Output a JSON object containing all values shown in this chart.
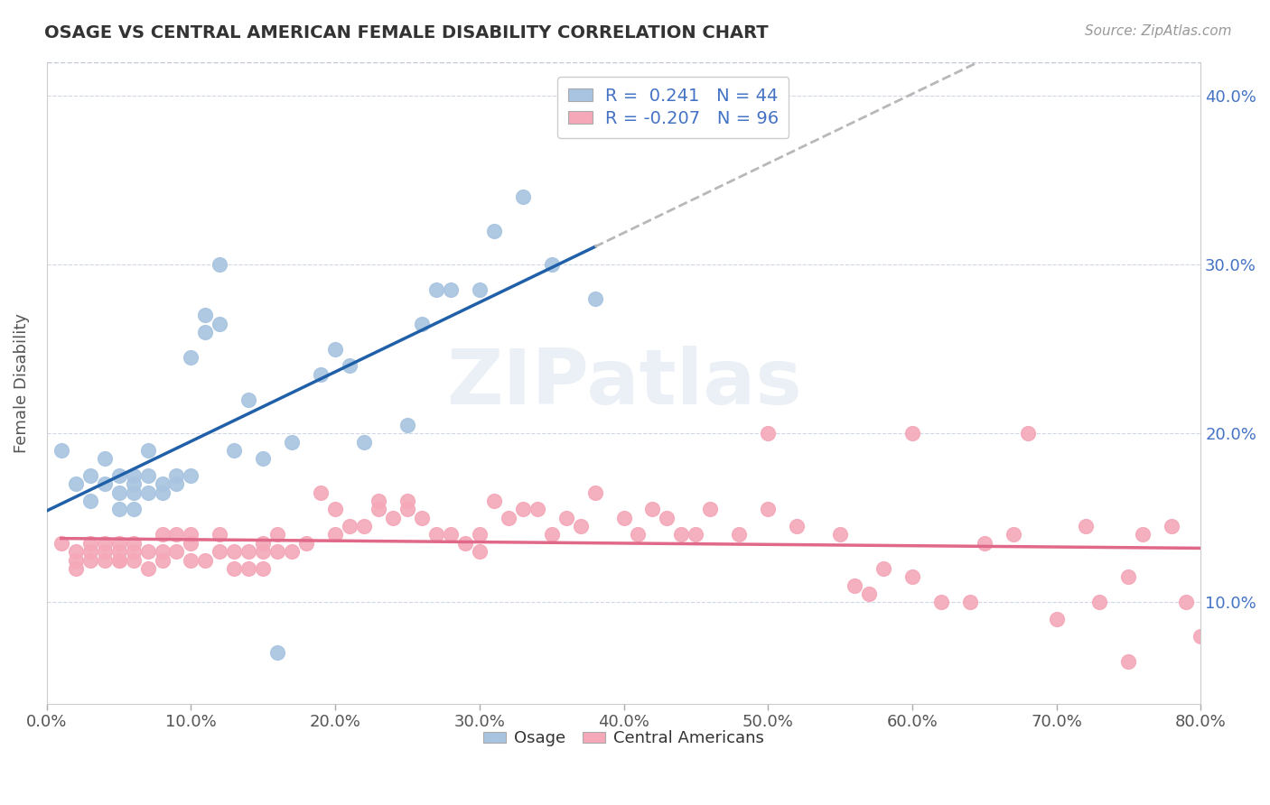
{
  "title": "OSAGE VS CENTRAL AMERICAN FEMALE DISABILITY CORRELATION CHART",
  "source": "Source: ZipAtlas.com",
  "ylabel": "Female Disability",
  "xlim": [
    0.0,
    0.8
  ],
  "ylim": [
    0.04,
    0.42
  ],
  "xtick_labels": [
    "0.0%",
    "10.0%",
    "20.0%",
    "30.0%",
    "40.0%",
    "50.0%",
    "60.0%",
    "70.0%",
    "80.0%"
  ],
  "xtick_values": [
    0.0,
    0.1,
    0.2,
    0.3,
    0.4,
    0.5,
    0.6,
    0.7,
    0.8
  ],
  "ytick_labels": [
    "10.0%",
    "20.0%",
    "30.0%",
    "40.0%"
  ],
  "ytick_values": [
    0.1,
    0.2,
    0.3,
    0.4
  ],
  "osage_color": "#a8c4e0",
  "central_color": "#f4a8b8",
  "osage_line_color": "#2060a8",
  "central_line_color": "#e06888",
  "trend_ext_color": "#b8b8b8",
  "legend_text_color": "#4472c4",
  "watermark": "ZIPatlas",
  "osage_R": "0.241",
  "osage_N": "44",
  "central_R": "-0.207",
  "central_N": "96",
  "osage_x": [
    0.01,
    0.02,
    0.03,
    0.03,
    0.04,
    0.04,
    0.05,
    0.05,
    0.05,
    0.06,
    0.06,
    0.06,
    0.06,
    0.07,
    0.07,
    0.07,
    0.08,
    0.08,
    0.09,
    0.09,
    0.1,
    0.1,
    0.11,
    0.11,
    0.12,
    0.12,
    0.13,
    0.14,
    0.15,
    0.16,
    0.17,
    0.19,
    0.2,
    0.21,
    0.22,
    0.25,
    0.26,
    0.27,
    0.28,
    0.3,
    0.31,
    0.33,
    0.35,
    0.38
  ],
  "osage_y": [
    0.19,
    0.17,
    0.16,
    0.175,
    0.185,
    0.17,
    0.175,
    0.165,
    0.155,
    0.175,
    0.165,
    0.155,
    0.17,
    0.165,
    0.175,
    0.19,
    0.17,
    0.165,
    0.17,
    0.175,
    0.175,
    0.245,
    0.26,
    0.27,
    0.3,
    0.265,
    0.19,
    0.22,
    0.185,
    0.07,
    0.195,
    0.235,
    0.25,
    0.24,
    0.195,
    0.205,
    0.265,
    0.285,
    0.285,
    0.285,
    0.32,
    0.34,
    0.3,
    0.28
  ],
  "central_x": [
    0.01,
    0.02,
    0.02,
    0.02,
    0.03,
    0.03,
    0.03,
    0.04,
    0.04,
    0.04,
    0.05,
    0.05,
    0.05,
    0.05,
    0.06,
    0.06,
    0.06,
    0.07,
    0.07,
    0.08,
    0.08,
    0.08,
    0.09,
    0.09,
    0.1,
    0.1,
    0.1,
    0.11,
    0.12,
    0.12,
    0.13,
    0.13,
    0.14,
    0.14,
    0.15,
    0.15,
    0.15,
    0.16,
    0.16,
    0.17,
    0.18,
    0.19,
    0.2,
    0.2,
    0.21,
    0.22,
    0.23,
    0.23,
    0.24,
    0.25,
    0.25,
    0.26,
    0.27,
    0.28,
    0.29,
    0.3,
    0.3,
    0.31,
    0.32,
    0.33,
    0.34,
    0.35,
    0.36,
    0.37,
    0.38,
    0.4,
    0.41,
    0.42,
    0.43,
    0.44,
    0.45,
    0.46,
    0.48,
    0.5,
    0.52,
    0.55,
    0.56,
    0.57,
    0.58,
    0.6,
    0.62,
    0.64,
    0.65,
    0.67,
    0.7,
    0.72,
    0.73,
    0.75,
    0.76,
    0.78,
    0.79,
    0.8,
    0.5,
    0.6,
    0.68,
    0.75
  ],
  "central_y": [
    0.135,
    0.13,
    0.12,
    0.125,
    0.13,
    0.135,
    0.125,
    0.13,
    0.125,
    0.135,
    0.13,
    0.125,
    0.135,
    0.125,
    0.13,
    0.125,
    0.135,
    0.13,
    0.12,
    0.13,
    0.125,
    0.14,
    0.13,
    0.14,
    0.14,
    0.135,
    0.125,
    0.125,
    0.13,
    0.14,
    0.13,
    0.12,
    0.13,
    0.12,
    0.135,
    0.13,
    0.12,
    0.13,
    0.14,
    0.13,
    0.135,
    0.165,
    0.155,
    0.14,
    0.145,
    0.145,
    0.16,
    0.155,
    0.15,
    0.155,
    0.16,
    0.15,
    0.14,
    0.14,
    0.135,
    0.13,
    0.14,
    0.16,
    0.15,
    0.155,
    0.155,
    0.14,
    0.15,
    0.145,
    0.165,
    0.15,
    0.14,
    0.155,
    0.15,
    0.14,
    0.14,
    0.155,
    0.14,
    0.155,
    0.145,
    0.14,
    0.11,
    0.105,
    0.12,
    0.115,
    0.1,
    0.1,
    0.135,
    0.14,
    0.09,
    0.145,
    0.1,
    0.115,
    0.14,
    0.145,
    0.1,
    0.08,
    0.2,
    0.2,
    0.2,
    0.065
  ]
}
